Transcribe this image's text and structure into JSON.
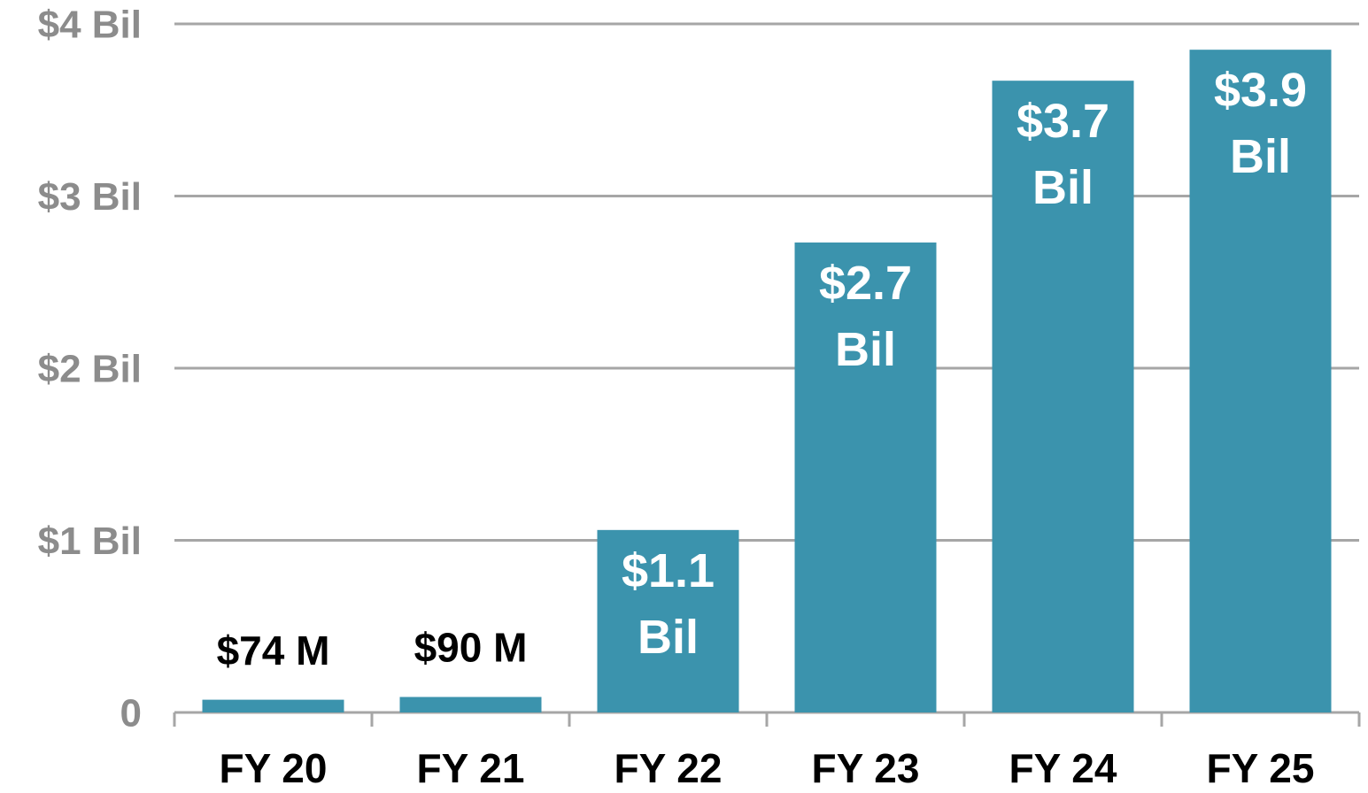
{
  "chart_data": {
    "type": "bar",
    "categories": [
      "FY 20",
      "FY 21",
      "FY 22",
      "FY 23",
      "FY 24",
      "FY 25"
    ],
    "values": [
      0.074,
      0.09,
      1.06,
      2.73,
      3.67,
      3.85
    ],
    "value_labels": [
      "$74 M",
      "$90 M",
      "$1.1 Bil",
      "$2.7 Bil",
      "$3.7 Bil",
      "$3.9 Bil"
    ],
    "color": "#3b93ad",
    "ylim": [
      0,
      4
    ],
    "yticks": [
      0,
      {
        "value": 1,
        "label": "$1 Bil"
      },
      {
        "value": 2,
        "label": "$2 Bil"
      },
      {
        "value": 3,
        "label": "$3 Bil"
      },
      {
        "value": 4,
        "label": "$4 Bil"
      }
    ],
    "grid": true
  }
}
